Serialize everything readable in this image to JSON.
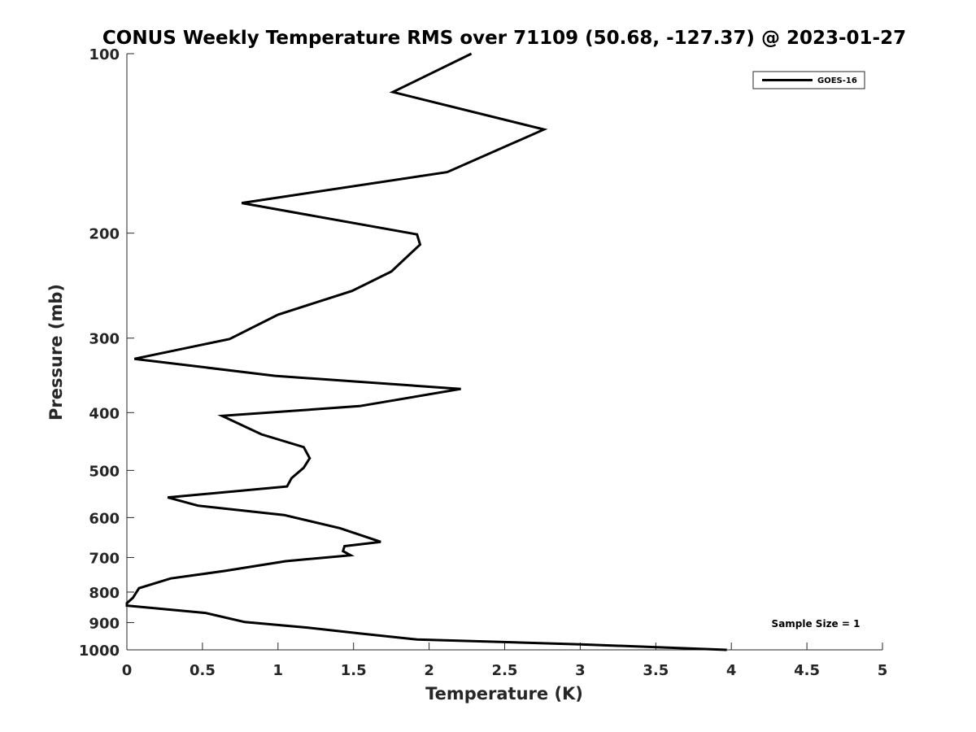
{
  "chart_data": {
    "type": "line",
    "title": "CONUS Weekly Temperature RMS over 71109 (50.68, -127.37) @ 2023-01-27",
    "xlabel": "Temperature (K)",
    "ylabel": "Pressure (mb)",
    "xlim": [
      0,
      5
    ],
    "ylim": [
      1000,
      100
    ],
    "y_scale": "log",
    "x_ticks": [
      "0",
      "0.5",
      "1",
      "1.5",
      "2",
      "2.5",
      "3",
      "3.5",
      "4",
      "4.5",
      "5"
    ],
    "y_ticks": [
      "100",
      "200",
      "300",
      "400",
      "500",
      "600",
      "700",
      "800",
      "900",
      "1000"
    ],
    "legend_position": "top-right",
    "grid": false,
    "line_color": "#000000",
    "series": [
      {
        "name": "GOES-16",
        "x": [
          2.28,
          1.76,
          2.76,
          2.12,
          0.76,
          1.92,
          1.94,
          1.75,
          1.49,
          1.0,
          0.68,
          0.05,
          0.98,
          2.21,
          1.54,
          0.63,
          0.89,
          1.17,
          1.21,
          1.17,
          1.09,
          1.06,
          0.27,
          0.47,
          1.04,
          1.41,
          1.68,
          1.44,
          1.43,
          1.48,
          1.05,
          0.65,
          0.29,
          0.08,
          0.04,
          0.0,
          0.0,
          0.52,
          0.78,
          1.2,
          1.55,
          1.92,
          3.0,
          3.97
        ],
        "y": [
          100,
          116,
          134,
          158,
          178,
          201,
          209,
          232,
          250,
          274,
          301,
          325,
          347,
          365,
          390,
          405,
          435,
          457,
          477,
          495,
          515,
          532,
          555,
          573,
          594,
          625,
          659,
          670,
          683,
          694,
          710,
          737,
          759,
          788,
          818,
          835,
          843,
          867,
          898,
          918,
          939,
          961,
          979,
          1000
        ]
      }
    ],
    "annotations": [
      "Sample Size = 1"
    ]
  }
}
